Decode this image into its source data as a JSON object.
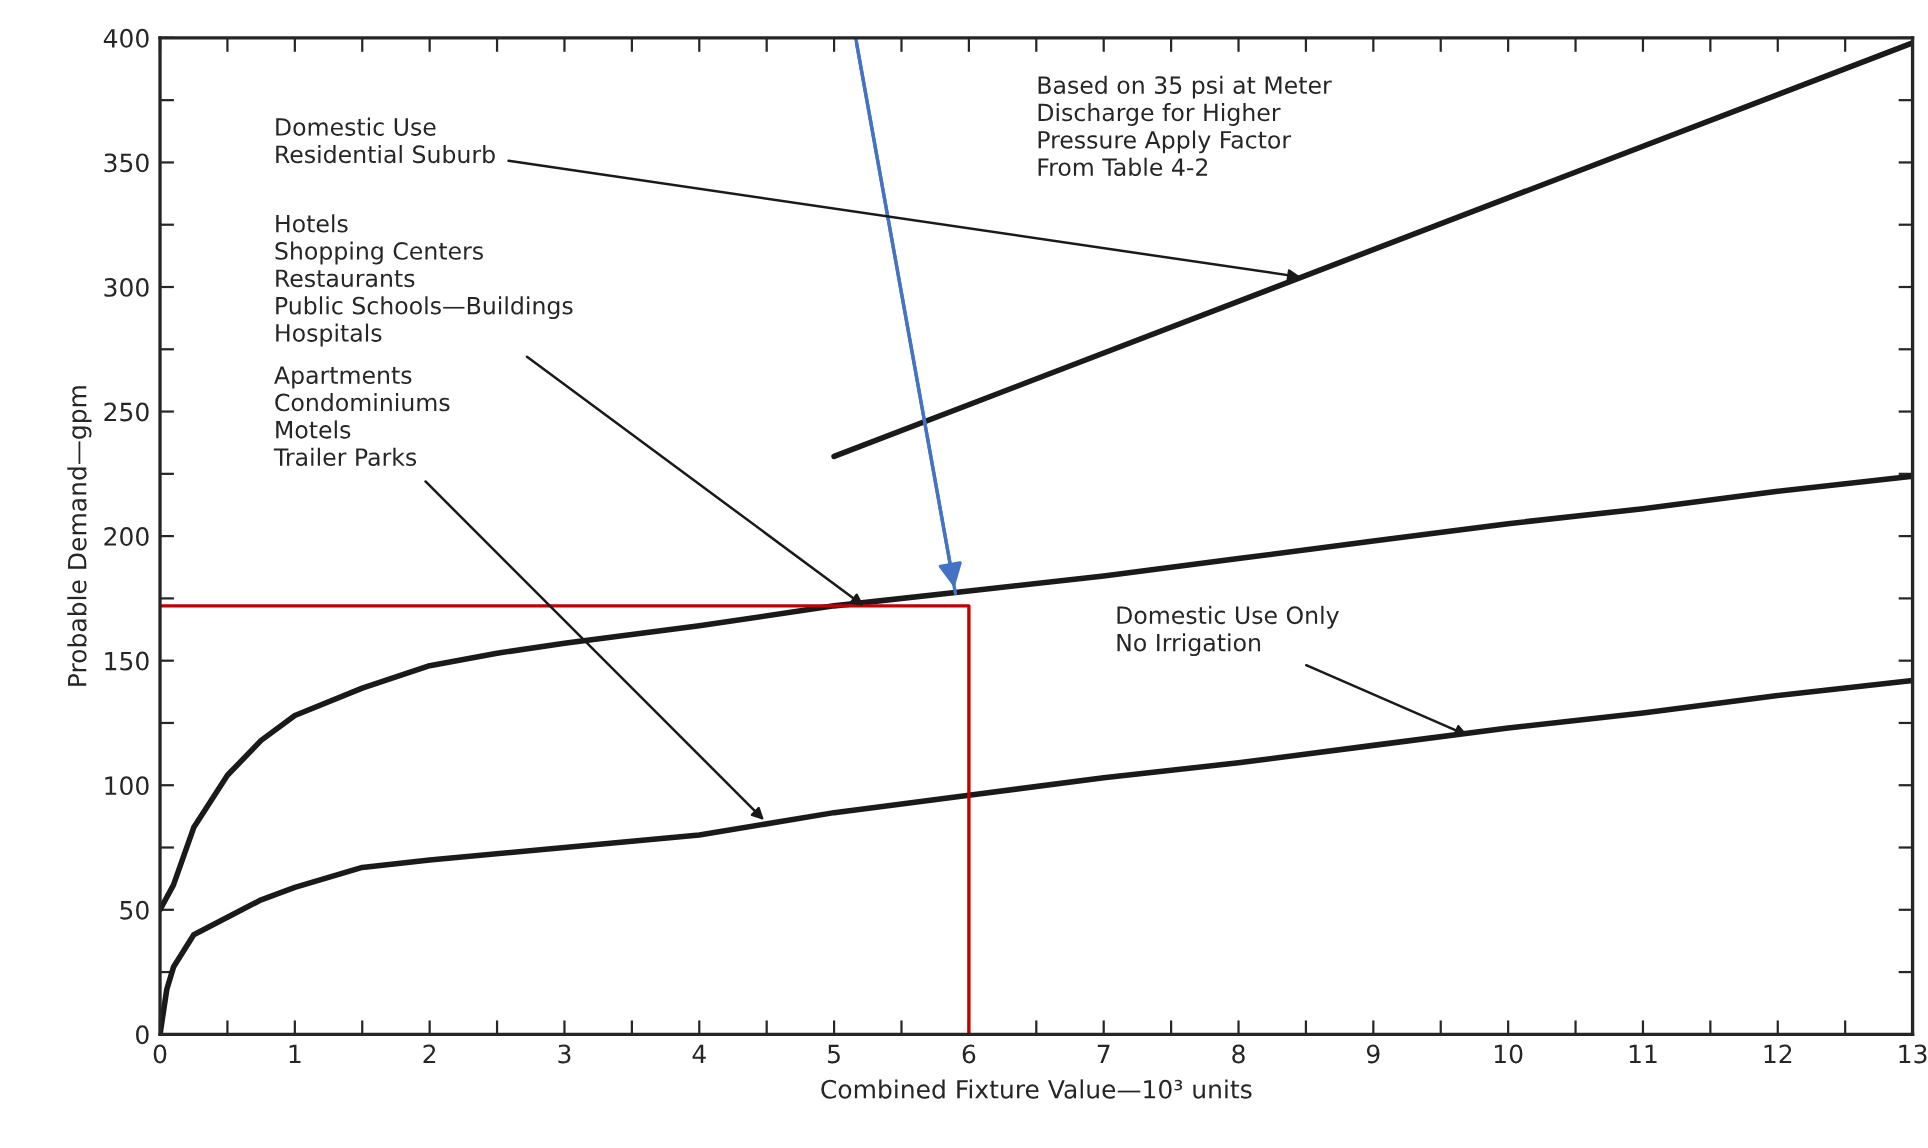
{
  "chart_data": {
    "type": "line",
    "xlabel": "Combined Fixture Value—10³ units",
    "ylabel": "Probable Demand—gpm",
    "xlim": [
      0,
      13
    ],
    "xticks": [
      0,
      {
        "value": 0.5,
        "label": null
      },
      1,
      {
        "value": 1.5,
        "label": null
      },
      2,
      {
        "value": 2.5,
        "label": null
      },
      3,
      {
        "value": 3.5,
        "label": null
      },
      4,
      {
        "value": 4.5,
        "label": null
      },
      5,
      {
        "value": 5.5,
        "label": null
      },
      6,
      {
        "value": 6.5,
        "label": null
      },
      7,
      {
        "value": 7.5,
        "label": null
      },
      8,
      {
        "value": 8.5,
        "label": null
      },
      9,
      {
        "value": 9.5,
        "label": null
      },
      10,
      {
        "value": 10.5,
        "label": null
      },
      11,
      {
        "value": 11.5,
        "label": null
      },
      12,
      {
        "value": 12.5,
        "label": null
      },
      13
    ],
    "ylim": [
      0,
      400
    ],
    "yticks": [
      0,
      {
        "value": 25,
        "label": null
      },
      50,
      {
        "value": 75,
        "label": null
      },
      100,
      {
        "value": 125,
        "label": null
      },
      150,
      {
        "value": 175,
        "label": null
      },
      200,
      {
        "value": 225,
        "label": null
      },
      250,
      {
        "value": 275,
        "label": null
      },
      300,
      {
        "value": 325,
        "label": null
      },
      350,
      {
        "value": 375,
        "label": null
      },
      400
    ],
    "grid": false,
    "legend": false,
    "series": [
      {
        "color": "#1a1a1a",
        "x": [
          5,
          13
        ],
        "values": [
          232,
          398
        ]
      },
      {
        "color": "#1a1a1a",
        "x": [
          0,
          0.1,
          0.25,
          0.5,
          0.75,
          1,
          1.5,
          2,
          2.5,
          3,
          4,
          5,
          6,
          7,
          8,
          9,
          10,
          11,
          12,
          13
        ],
        "values": [
          50,
          60,
          83,
          104,
          118,
          128,
          139,
          148,
          153,
          157,
          164,
          172,
          178,
          184,
          191,
          198,
          205,
          211,
          218,
          224
        ]
      },
      {
        "color": "#1a1a1a",
        "x": [
          0,
          0.05,
          0.1,
          0.25,
          0.5,
          0.75,
          1,
          1.5,
          2,
          3,
          4,
          5,
          6,
          7,
          8,
          9,
          10,
          11,
          12,
          13
        ],
        "values": [
          0,
          18,
          27,
          40,
          47,
          54,
          59,
          67,
          70,
          75,
          80,
          89,
          96,
          103,
          109,
          116,
          123,
          129,
          136,
          142
        ]
      },
      {
        "color": "#c00000",
        "x": [
          0,
          6,
          6
        ],
        "values": [
          172,
          172,
          0
        ]
      },
      {
        "color": "#4472c4",
        "x": [
          5.16,
          5.9
        ],
        "values": [
          400,
          177
        ]
      }
    ],
    "annotations": [
      {
        "text": "Domestic Use\nResidential Suburb",
        "x": 8.46,
        "y": 304
      },
      {
        "text": "Hotels\nShopping Centers\nRestaurants\nPublic Schools—Buildings\nHospitals",
        "x": 5.22,
        "y": 172
      },
      {
        "text": "Apartments\nCondominiums\nMotels\nTrailer Parks",
        "x": 4.48,
        "y": 86
      },
      {
        "text": "Domestic Use Only\nNo Irrigation",
        "x": 9.7,
        "y": 120
      },
      "Based on 35 psi at Meter\nDischarge for Higher\nPressure Apply Factor\nFrom Table 4-2"
    ]
  }
}
